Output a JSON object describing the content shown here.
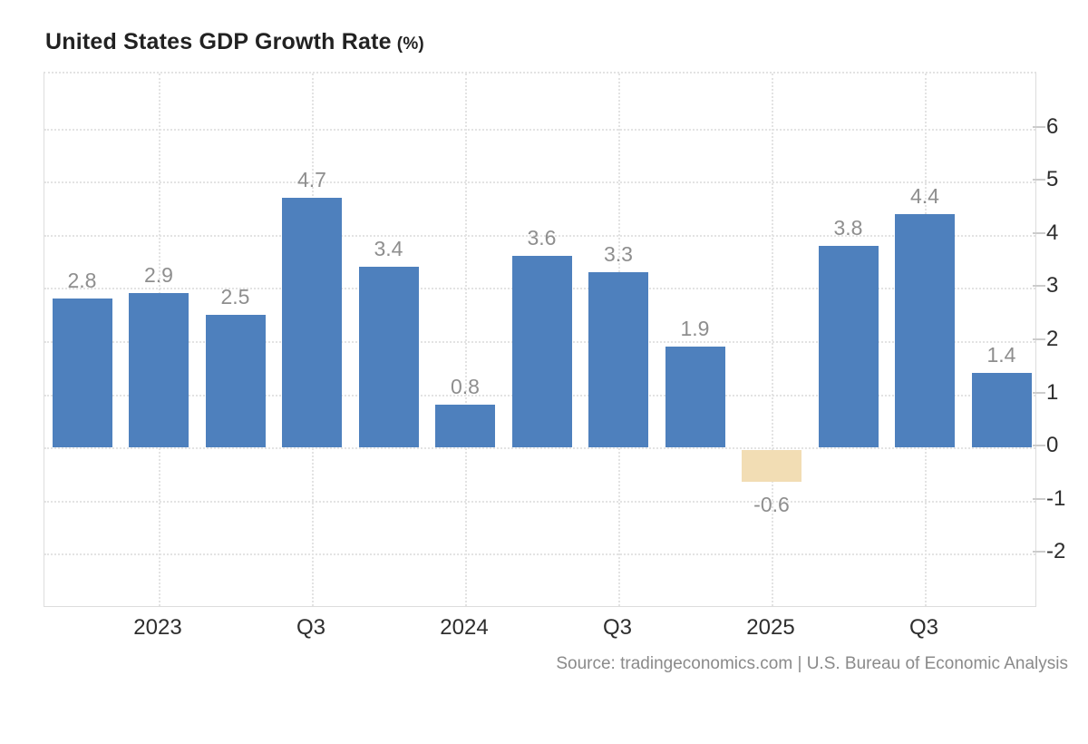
{
  "page": {
    "title": "United States GDP Growth Rate",
    "title_unit": "(%)",
    "source_text": "Source: tradingeconomics.com | U.S. Bureau of Economic Analysis"
  },
  "chart_data": {
    "type": "bar",
    "title": "United States GDP Growth Rate (%)",
    "series": [
      {
        "name": "GDP Growth Rate (%)",
        "values": [
          2.8,
          2.9,
          2.5,
          4.7,
          3.4,
          0.8,
          3.6,
          3.3,
          1.9,
          -0.6,
          3.8,
          4.4,
          1.4
        ]
      }
    ],
    "bar_value_labels": [
      "2.8",
      "2.9",
      "2.5",
      "4.7",
      "3.4",
      "0.8",
      "3.6",
      "3.3",
      "1.9",
      "-0.6",
      "3.8",
      "4.4",
      "1.4"
    ],
    "x_axis": {
      "tick_labels": [
        "2023",
        "Q3",
        "2024",
        "Q3",
        "2025",
        "Q3"
      ],
      "tick_at_bar_index": [
        1,
        3,
        5,
        7,
        9,
        11
      ]
    },
    "y_axis": {
      "position": "right",
      "ticks": [
        6,
        5,
        4,
        3,
        2,
        1,
        0,
        -1,
        -2
      ],
      "ylim": [
        -3.04,
        7.04
      ]
    },
    "grid": {
      "style": "dotted",
      "horizontal": true,
      "vertical": true
    },
    "legend": null,
    "colors": {
      "positive_bar": "#4e80bd",
      "negative_bar": "#f2ddb4",
      "bar_value_label": "#8e8e8e",
      "axis_tick_label": "#2e2e2e",
      "grid_line": "#e3e3e3",
      "axis_line": "#dddddd",
      "title": "#222222",
      "source": "#8a8a8a"
    },
    "source": "Source: tradingeconomics.com | U.S. Bureau of Economic Analysis"
  }
}
